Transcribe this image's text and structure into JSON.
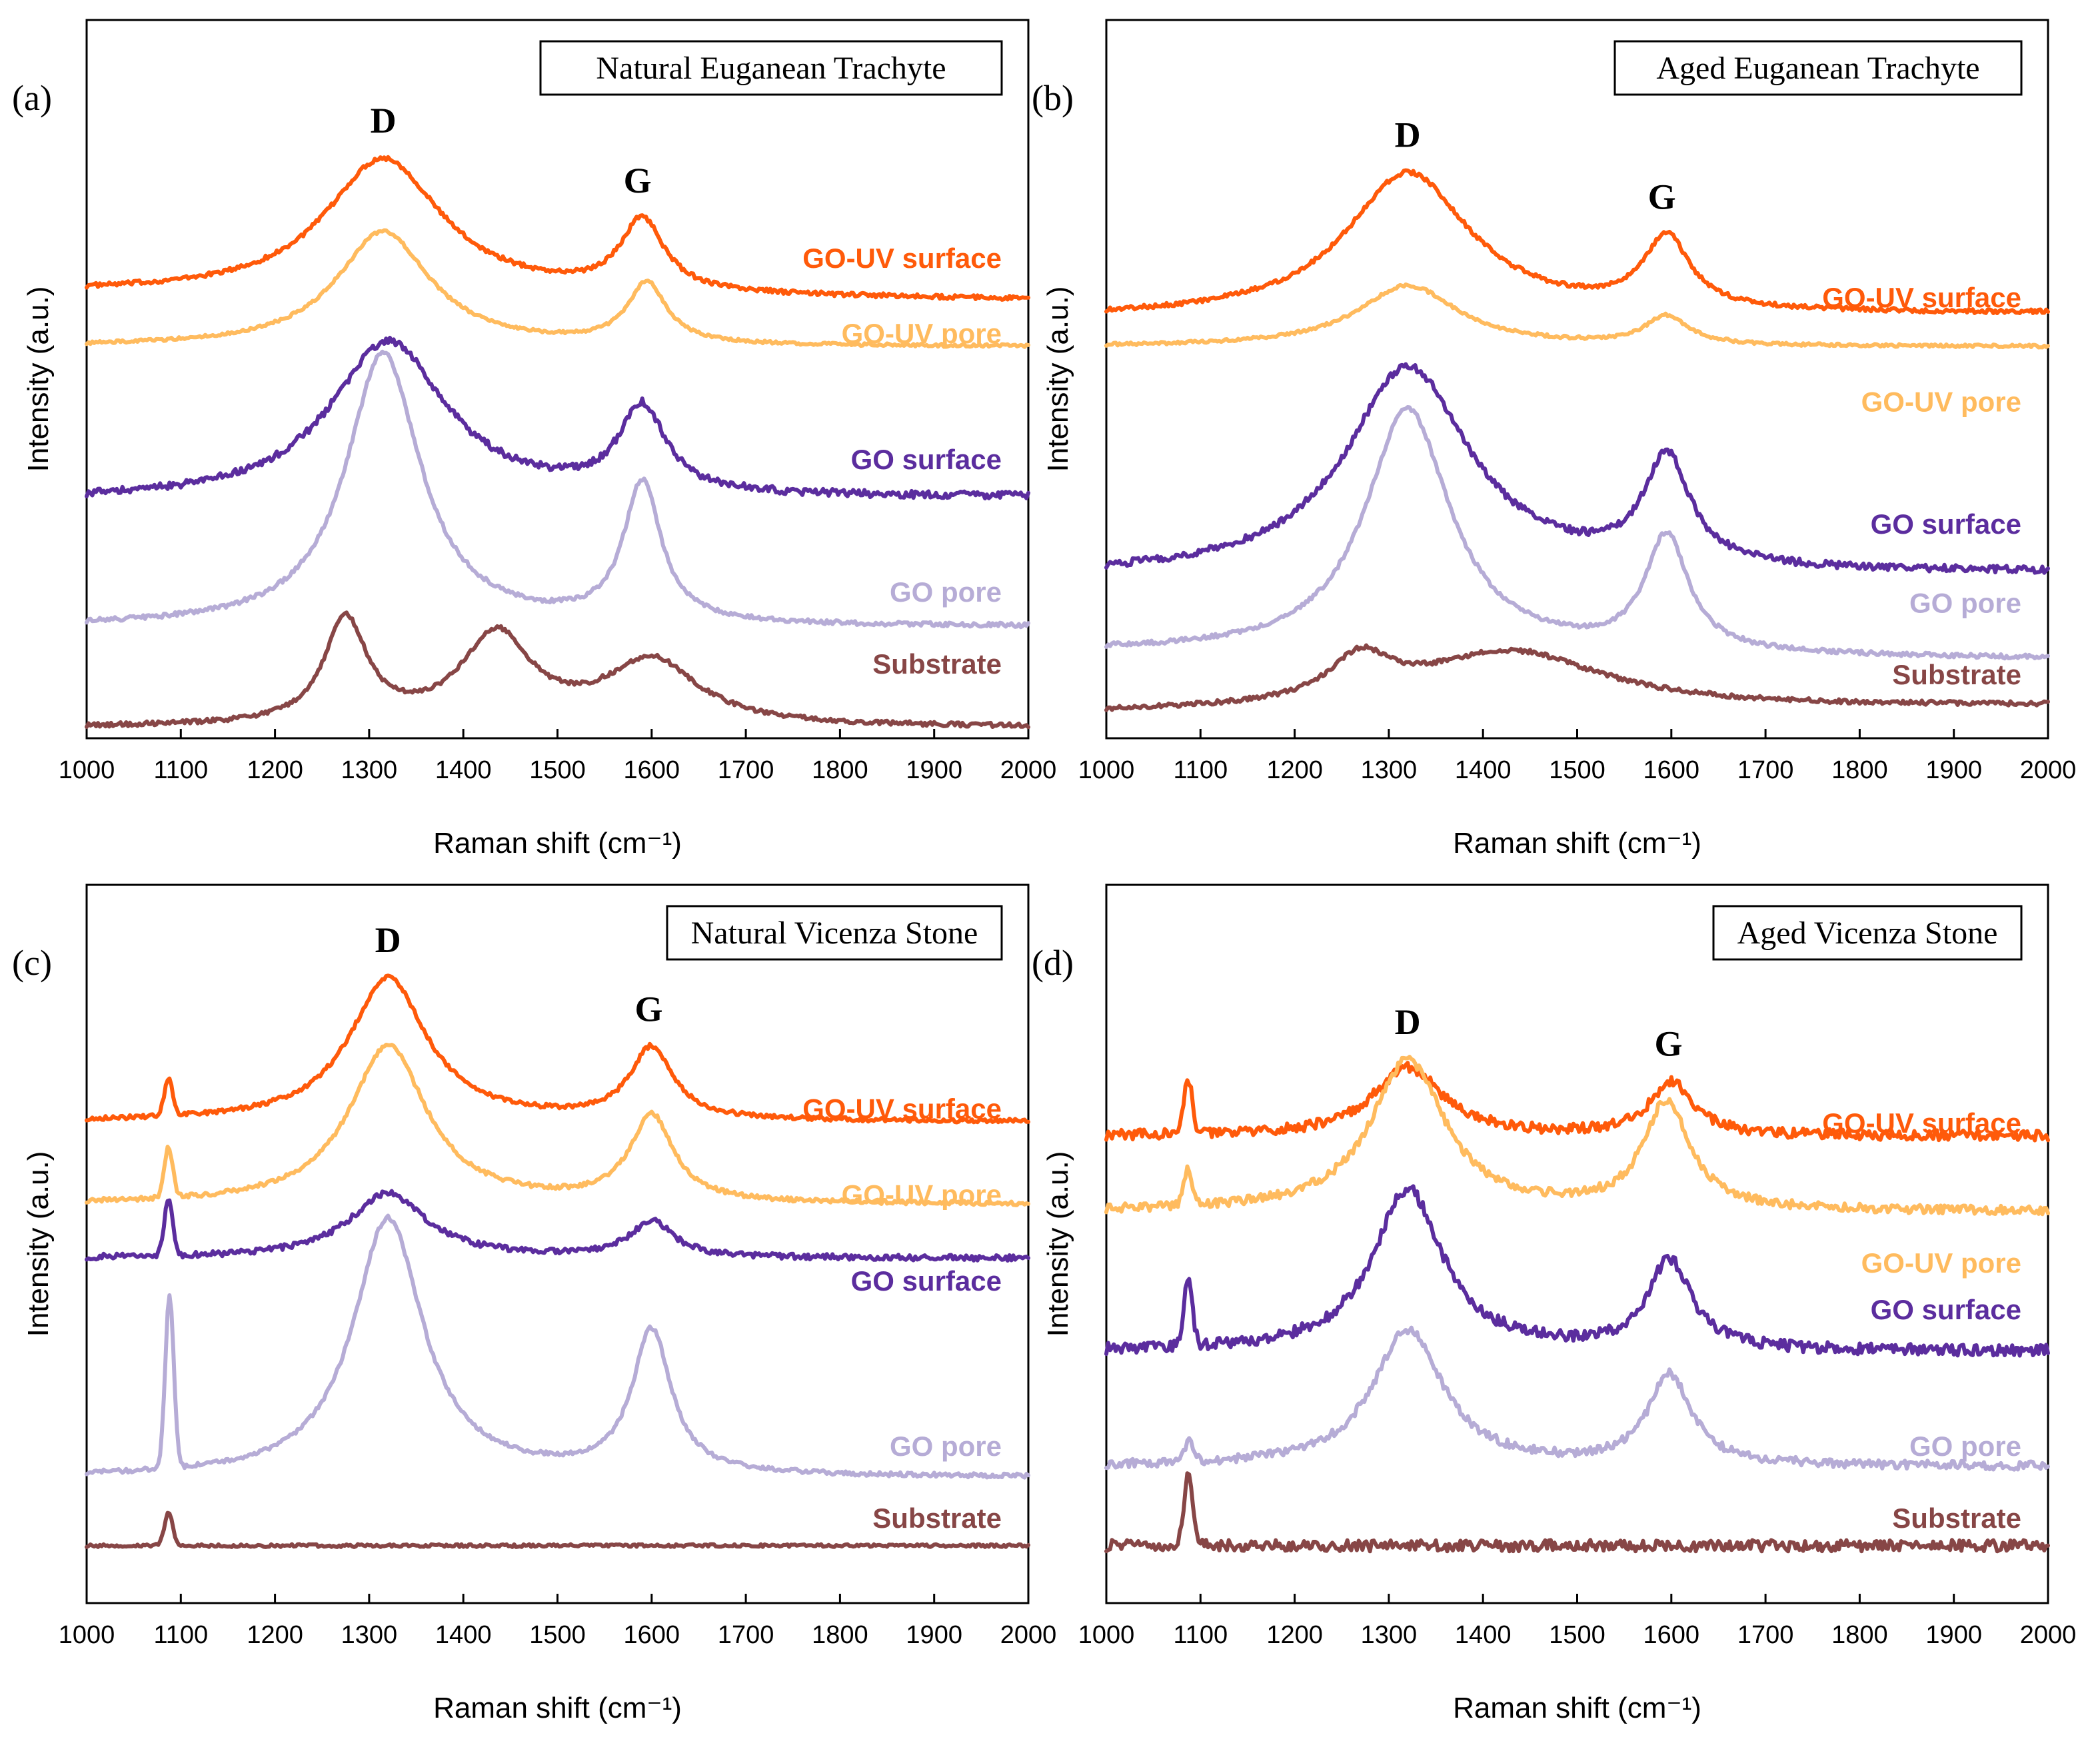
{
  "colors": {
    "go_uv_surface": "#ff5a0a",
    "go_uv_pore": "#ffbb5e",
    "go_surface": "#5b2d9e",
    "go_pore": "#b6acd6",
    "substrate": "#874646"
  },
  "chart_data": [
    {
      "type": "line",
      "panel": "(a)",
      "title": "Natural Euganean Trachyte",
      "xlabel": "Raman shift (cm⁻¹)",
      "ylabel": "Intensity (a.u.)",
      "xlim": [
        1000,
        2000
      ],
      "ylim": [
        0,
        10
      ],
      "xticks": [
        "1000",
        "1100",
        "1200",
        "1300",
        "1400",
        "1500",
        "1600",
        "1700",
        "1800",
        "1900",
        "2000"
      ],
      "peaks": [
        {
          "label": "D",
          "x": 1315
        },
        {
          "label": "G",
          "x": 1585
        }
      ],
      "series": [
        {
          "name": "GO-UV surface",
          "color_key": "go_uv_surface",
          "baseline": 6.2,
          "slope": -0.1,
          "p1": {
            "x": 1315,
            "w": 75,
            "h": 1.9
          },
          "p2": {
            "x": 1590,
            "w": 28,
            "h": 1.0
          },
          "noise": 0.03,
          "label_y": 6.55
        },
        {
          "name": "GO-UV pore",
          "color_key": "go_uv_pore",
          "baseline": 5.45,
          "slope": 0,
          "p1": {
            "x": 1315,
            "w": 60,
            "h": 1.6
          },
          "p2": {
            "x": 1595,
            "w": 25,
            "h": 0.85
          },
          "noise": 0.02,
          "label_y": 5.5
        },
        {
          "name": "GO surface",
          "color_key": "go_surface",
          "baseline": 3.3,
          "slope": 0.05,
          "p1": {
            "x": 1320,
            "w": 75,
            "h": 2.2
          },
          "p2": {
            "x": 1590,
            "w": 30,
            "h": 1.2
          },
          "noise": 0.05,
          "label_y": 3.75
        },
        {
          "name": "GO pore",
          "color_key": "go_pore",
          "baseline": 1.55,
          "slope": 0,
          "p1": {
            "x": 1315,
            "w": 48,
            "h": 3.8
          },
          "p2": {
            "x": 1590,
            "w": 24,
            "h": 1.95
          },
          "noise": 0.03,
          "label_y": 1.9
        },
        {
          "name": "Substrate",
          "color_key": "substrate",
          "baseline": 0.15,
          "slope": 0,
          "p1": {
            "x": 1275,
            "w": 28,
            "h": 1.45
          },
          "p2": {
            "x": 1435,
            "w": 45,
            "h": 1.25
          },
          "p3": {
            "x": 1600,
            "w": 60,
            "h": 0.9
          },
          "noise": 0.03,
          "label_y": 0.9
        }
      ]
    },
    {
      "type": "line",
      "panel": "(b)",
      "title": "Aged Euganean Trachyte",
      "xlabel": "Raman shift (cm⁻¹)",
      "ylabel": "Intensity (a.u.)",
      "xlim": [
        1000,
        2000
      ],
      "ylim": [
        0,
        10
      ],
      "xticks": [
        "1000",
        "1100",
        "1200",
        "1300",
        "1400",
        "1500",
        "1600",
        "1700",
        "1800",
        "1900",
        "2000"
      ],
      "peaks": [
        {
          "label": "D",
          "x": 1320
        },
        {
          "label": "G",
          "x": 1590
        }
      ],
      "series": [
        {
          "name": "GO-UV surface",
          "color_key": "go_uv_surface",
          "baseline": 5.85,
          "slope": 0.06,
          "p1": {
            "x": 1320,
            "w": 80,
            "h": 2.0
          },
          "p2": {
            "x": 1595,
            "w": 30,
            "h": 1.0
          },
          "noise": 0.03,
          "label_y": 6.0
        },
        {
          "name": "GO-UV pore",
          "color_key": "go_uv_pore",
          "baseline": 5.45,
          "slope": 0,
          "p1": {
            "x": 1320,
            "w": 65,
            "h": 0.85
          },
          "p2": {
            "x": 1595,
            "w": 28,
            "h": 0.4
          },
          "noise": 0.02,
          "label_y": 4.55
        },
        {
          "name": "GO surface",
          "color_key": "go_surface",
          "baseline": 2.25,
          "slope": 0.05,
          "p1": {
            "x": 1320,
            "w": 80,
            "h": 2.9
          },
          "p2": {
            "x": 1595,
            "w": 30,
            "h": 1.5
          },
          "noise": 0.05,
          "label_y": 2.85
        },
        {
          "name": "GO pore",
          "color_key": "go_pore",
          "baseline": 1.2,
          "slope": -0.1,
          "p1": {
            "x": 1320,
            "w": 55,
            "h": 3.4
          },
          "p2": {
            "x": 1595,
            "w": 28,
            "h": 1.6
          },
          "noise": 0.03,
          "label_y": 1.75
        },
        {
          "name": "Substrate",
          "color_key": "substrate",
          "baseline": 0.35,
          "slope": 0.1,
          "p1": {
            "x": 1270,
            "w": 40,
            "h": 0.6
          },
          "p2": {
            "x": 1430,
            "w": 120,
            "h": 0.8
          },
          "noise": 0.03,
          "label_y": 0.75
        }
      ]
    },
    {
      "type": "line",
      "panel": "(c)",
      "title": "Natural Vicenza Stone",
      "xlabel": "Raman shift (cm⁻¹)",
      "ylabel": "Intensity (a.u.)",
      "xlim": [
        1000,
        2000
      ],
      "ylim": [
        0,
        10
      ],
      "xticks": [
        "1000",
        "1100",
        "1200",
        "1300",
        "1400",
        "1500",
        "1600",
        "1700",
        "1800",
        "1900",
        "2000"
      ],
      "peaks": [
        {
          "label": "D",
          "x": 1320
        },
        {
          "label": "G",
          "x": 1597
        }
      ],
      "series": [
        {
          "name": "GO-UV surface",
          "color_key": "go_uv_surface",
          "baseline": 6.7,
          "slope": 0,
          "p1": {
            "x": 1320,
            "w": 50,
            "h": 2.0
          },
          "p2": {
            "x": 1600,
            "w": 28,
            "h": 1.0
          },
          "spike": {
            "x": 1087,
            "h": 0.5
          },
          "noise": 0.03,
          "label_y": 6.75
        },
        {
          "name": "GO-UV pore",
          "color_key": "go_uv_pore",
          "baseline": 5.55,
          "slope": 0,
          "p1": {
            "x": 1320,
            "w": 50,
            "h": 2.2
          },
          "p2": {
            "x": 1600,
            "w": 28,
            "h": 1.2
          },
          "spike": {
            "x": 1087,
            "h": 0.7
          },
          "noise": 0.03,
          "label_y": 5.55
        },
        {
          "name": "GO surface",
          "color_key": "go_surface",
          "baseline": 4.8,
          "slope": 0,
          "p1": {
            "x": 1320,
            "w": 50,
            "h": 0.9
          },
          "p2": {
            "x": 1600,
            "w": 28,
            "h": 0.5
          },
          "spike": {
            "x": 1087,
            "h": 0.8
          },
          "noise": 0.04,
          "label_y": 4.35
        },
        {
          "name": "GO pore",
          "color_key": "go_pore",
          "baseline": 1.75,
          "slope": 0,
          "p1": {
            "x": 1320,
            "w": 45,
            "h": 3.6
          },
          "p2": {
            "x": 1600,
            "w": 25,
            "h": 2.0
          },
          "spike": {
            "x": 1088,
            "h": 2.4
          },
          "noise": 0.03,
          "label_y": 2.05
        },
        {
          "name": "Substrate",
          "color_key": "substrate",
          "baseline": 0.8,
          "slope": 0,
          "spike": {
            "x": 1087,
            "h": 0.45
          },
          "noise": 0.02,
          "label_y": 1.05
        }
      ]
    },
    {
      "type": "line",
      "panel": "(d)",
      "title": "Aged Vicenza Stone",
      "xlabel": "Raman shift (cm⁻¹)",
      "ylabel": "Intensity (a.u.)",
      "xlim": [
        1000,
        2000
      ],
      "ylim": [
        0,
        10
      ],
      "xticks": [
        "1000",
        "1100",
        "1200",
        "1300",
        "1400",
        "1500",
        "1600",
        "1700",
        "1800",
        "1900",
        "2000"
      ],
      "peaks": [
        {
          "label": "D",
          "x": 1320
        },
        {
          "label": "G",
          "x": 1597
        }
      ],
      "series": [
        {
          "name": "GO-UV surface",
          "color_key": "go_uv_surface",
          "baseline": 6.5,
          "slope": 0,
          "p1": {
            "x": 1320,
            "w": 45,
            "h": 0.95
          },
          "p2": {
            "x": 1600,
            "w": 28,
            "h": 0.75
          },
          "spike": {
            "x": 1087,
            "h": 0.75
          },
          "noise": 0.07,
          "label_y": 6.55
        },
        {
          "name": "GO-UV pore",
          "color_key": "go_uv_pore",
          "baseline": 5.45,
          "slope": 0,
          "p1": {
            "x": 1320,
            "w": 48,
            "h": 2.1
          },
          "p2": {
            "x": 1595,
            "w": 30,
            "h": 1.5
          },
          "spike": {
            "x": 1087,
            "h": 0.5
          },
          "noise": 0.06,
          "label_y": 4.6
        },
        {
          "name": "GO surface",
          "color_key": "go_surface",
          "baseline": 3.5,
          "slope": 0,
          "p1": {
            "x": 1320,
            "w": 45,
            "h": 2.25
          },
          "p2": {
            "x": 1598,
            "w": 28,
            "h": 1.25
          },
          "spike": {
            "x": 1087,
            "h": 0.95
          },
          "noise": 0.08,
          "label_y": 3.95
        },
        {
          "name": "GO pore",
          "color_key": "go_pore",
          "baseline": 1.9,
          "slope": 0,
          "p1": {
            "x": 1320,
            "w": 45,
            "h": 1.9
          },
          "p2": {
            "x": 1598,
            "w": 28,
            "h": 1.25
          },
          "spike": {
            "x": 1088,
            "h": 0.3
          },
          "noise": 0.06,
          "label_y": 2.05
        },
        {
          "name": "Substrate",
          "color_key": "substrate",
          "baseline": 0.8,
          "slope": 0,
          "spike": {
            "x": 1087,
            "h": 0.95
          },
          "noise": 0.08,
          "label_y": 1.05
        }
      ]
    }
  ]
}
